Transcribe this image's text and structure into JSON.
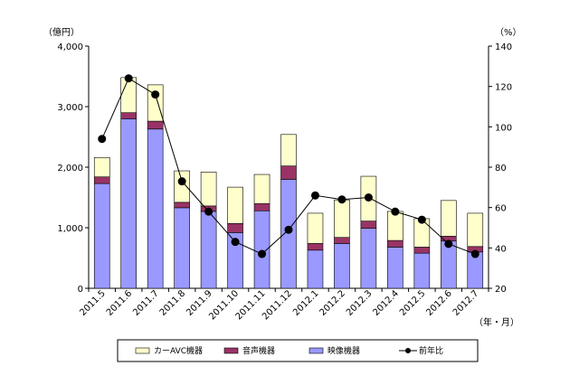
{
  "chart_data": {
    "type": "bar",
    "stacked": true,
    "categories": [
      "2011.5",
      "2011.6",
      "2011.7",
      "2011.8",
      "2011.9",
      "2011.10",
      "2011.11",
      "2011.12",
      "2012.1",
      "2012.2",
      "2012.3",
      "2012.4",
      "2012.5",
      "2012.6",
      "2012.7"
    ],
    "series": [
      {
        "name": "映像機器",
        "axis": "left",
        "color": "#9999ff",
        "values": [
          1730,
          2800,
          2630,
          1330,
          1270,
          920,
          1280,
          1800,
          630,
          740,
          990,
          680,
          580,
          780,
          600
        ]
      },
      {
        "name": "音声機器",
        "axis": "left",
        "color": "#993366",
        "values": [
          110,
          100,
          130,
          90,
          90,
          150,
          120,
          220,
          110,
          100,
          120,
          110,
          100,
          80,
          90
        ]
      },
      {
        "name": "カーAVC機器",
        "axis": "left",
        "color": "#ffffcc",
        "values": [
          320,
          580,
          600,
          520,
          560,
          600,
          480,
          520,
          500,
          620,
          740,
          480,
          470,
          590,
          550
        ]
      }
    ],
    "line_series": [
      {
        "name": "前年比",
        "axis": "right",
        "color": "#000000",
        "values": [
          94,
          124,
          116,
          73,
          58,
          43,
          37,
          49,
          66,
          64,
          65,
          58,
          54,
          42,
          37
        ]
      }
    ],
    "y_left": {
      "label": "（億円）",
      "ylim": [
        0,
        4000
      ],
      "ticks": [
        0,
        1000,
        2000,
        3000,
        4000
      ],
      "tick_labels": [
        "0",
        "1,000",
        "2,000",
        "3,000",
        "4,000"
      ]
    },
    "y_right": {
      "label": "（%）",
      "ylim": [
        20,
        140
      ],
      "ticks": [
        20,
        40,
        60,
        80,
        100,
        120,
        140
      ],
      "tick_labels": [
        "20",
        "40",
        "60",
        "80",
        "100",
        "120",
        "140"
      ]
    },
    "xlabel": "（年・月）",
    "legend_position": "bottom",
    "grid": false
  },
  "legend": [
    {
      "key": "car",
      "label": "カーAVC機器",
      "type": "box",
      "color": "#ffffcc"
    },
    {
      "key": "audio",
      "label": "音声機器",
      "type": "box",
      "color": "#993366"
    },
    {
      "key": "video",
      "label": "映像機器",
      "type": "box",
      "color": "#9999ff"
    },
    {
      "key": "yoy",
      "label": "前年比",
      "type": "line",
      "color": "#000000"
    }
  ]
}
